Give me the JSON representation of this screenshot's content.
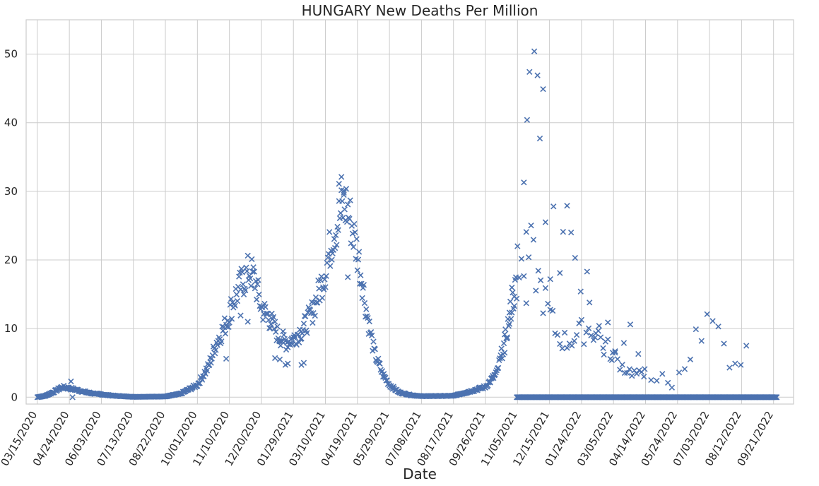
{
  "chart_data": {
    "type": "scatter",
    "title": "HUNGARY   New Deaths Per Million",
    "xlabel": "Date",
    "ylabel": "",
    "marker": "x",
    "color": "#4c72b0",
    "grid": true,
    "xlim_dates": [
      "2020-03-01",
      "2022-10-16"
    ],
    "ylim": [
      -1,
      55
    ],
    "y_ticks": [
      0,
      10,
      20,
      30,
      40,
      50
    ],
    "x_ticks": [
      "03/15/2020",
      "04/24/2020",
      "06/03/2020",
      "07/13/2020",
      "08/22/2020",
      "10/01/2020",
      "11/10/2020",
      "12/20/2020",
      "01/29/2021",
      "03/10/2021",
      "04/19/2021",
      "05/29/2021",
      "07/08/2021",
      "08/17/2021",
      "09/26/2021",
      "11/05/2021",
      "12/15/2021",
      "01/24/2022",
      "03/05/2022",
      "04/14/2022",
      "05/24/2022",
      "07/03/2022",
      "08/12/2022",
      "09/21/2022"
    ],
    "series": [
      {
        "anchors": [
          [
            "2020-03-15",
            0
          ],
          [
            "2020-03-25",
            0.2
          ],
          [
            "2020-04-05",
            0.8
          ],
          [
            "2020-04-15",
            1.5
          ],
          [
            "2020-04-24",
            1.3
          ],
          [
            "2020-05-05",
            1.0
          ],
          [
            "2020-05-20",
            0.6
          ],
          [
            "2020-06-03",
            0.4
          ],
          [
            "2020-06-20",
            0.2
          ],
          [
            "2020-07-13",
            0.05
          ],
          [
            "2020-08-22",
            0.1
          ],
          [
            "2020-09-10",
            0.5
          ],
          [
            "2020-10-01",
            1.8
          ],
          [
            "2020-10-15",
            4.5
          ],
          [
            "2020-10-25",
            8.0
          ],
          [
            "2020-11-05",
            10.5
          ],
          [
            "2020-11-15",
            14.0
          ],
          [
            "2020-11-25",
            16.5
          ],
          [
            "2020-12-05",
            18.5
          ],
          [
            "2020-12-12",
            17.0
          ],
          [
            "2020-12-20",
            13.0
          ],
          [
            "2020-12-30",
            11.5
          ],
          [
            "2021-01-10",
            9.0
          ],
          [
            "2021-01-20",
            8.0
          ],
          [
            "2021-01-29",
            8.5
          ],
          [
            "2021-02-10",
            10.0
          ],
          [
            "2021-02-20",
            12.0
          ],
          [
            "2021-03-01",
            15.0
          ],
          [
            "2021-03-10",
            18.5
          ],
          [
            "2021-03-20",
            24.0
          ],
          [
            "2021-03-30",
            27.0
          ],
          [
            "2021-04-05",
            28.0
          ],
          [
            "2021-04-12",
            25.0
          ],
          [
            "2021-04-19",
            21.0
          ],
          [
            "2021-04-25",
            17.0
          ],
          [
            "2021-05-01",
            12.0
          ],
          [
            "2021-05-10",
            6.5
          ],
          [
            "2021-05-20",
            3.5
          ],
          [
            "2021-05-29",
            1.8
          ],
          [
            "2021-06-10",
            0.7
          ],
          [
            "2021-06-25",
            0.3
          ],
          [
            "2021-07-08",
            0.15
          ],
          [
            "2021-08-17",
            0.2
          ],
          [
            "2021-09-05",
            0.8
          ],
          [
            "2021-09-26",
            1.5
          ],
          [
            "2021-10-10",
            3.5
          ],
          [
            "2021-10-20",
            8.0
          ],
          [
            "2021-10-28",
            13.0
          ],
          [
            "2021-11-05",
            17.0
          ],
          [
            "2021-11-15",
            20.0
          ],
          [
            "2021-11-22",
            21.0
          ],
          [
            "2021-12-01",
            17.0
          ],
          [
            "2021-12-15",
            12.0
          ],
          [
            "2021-12-25",
            9.0
          ],
          [
            "2022-01-05",
            8.0
          ],
          [
            "2022-01-24",
            9.5
          ],
          [
            "2022-02-05",
            10.0
          ],
          [
            "2022-02-15",
            9.0
          ],
          [
            "2022-03-05",
            6.0
          ],
          [
            "2022-03-20",
            4.0
          ],
          [
            "2022-04-14",
            3.0
          ],
          [
            "2022-05-10",
            0
          ],
          [
            "2022-10-16",
            0
          ]
        ],
        "spikes": [
          [
            "2020-04-26",
            2.3
          ],
          [
            "2020-04-28",
            0
          ],
          [
            "2020-11-06",
            5.6
          ],
          [
            "2020-11-24",
            11.9
          ],
          [
            "2020-12-03",
            11.0
          ],
          [
            "2021-01-06",
            5.7
          ],
          [
            "2021-01-12",
            5.5
          ],
          [
            "2021-01-19",
            4.7
          ],
          [
            "2021-01-22",
            4.9
          ],
          [
            "2021-02-08",
            4.7
          ],
          [
            "2021-02-11",
            5.0
          ],
          [
            "2021-03-27",
            31.1
          ],
          [
            "2021-03-30",
            32.1
          ],
          [
            "2021-04-02",
            29.8
          ],
          [
            "2021-04-02",
            30.1
          ],
          [
            "2021-04-07",
            17.5
          ],
          [
            "2021-11-05",
            22.0
          ],
          [
            "2021-11-13",
            31.3
          ],
          [
            "2021-11-16",
            13.7
          ],
          [
            "2021-11-17",
            40.4
          ],
          [
            "2021-11-20",
            47.4
          ],
          [
            "2021-11-26",
            50.4
          ],
          [
            "2021-11-30",
            46.9
          ],
          [
            "2021-12-03",
            37.7
          ],
          [
            "2021-12-07",
            44.9
          ],
          [
            "2021-12-10",
            25.5
          ],
          [
            "2021-12-16",
            17.2
          ],
          [
            "2021-12-20",
            27.8
          ],
          [
            "2021-12-28",
            18.1
          ],
          [
            "2022-01-01",
            24.1
          ],
          [
            "2022-01-06",
            27.9
          ],
          [
            "2022-01-11",
            24.0
          ],
          [
            "2022-01-16",
            20.3
          ],
          [
            "2022-01-23",
            15.4
          ],
          [
            "2022-01-31",
            18.3
          ],
          [
            "2022-02-03",
            13.8
          ],
          [
            "2022-02-10",
            8.7
          ],
          [
            "2022-02-15",
            10.4
          ],
          [
            "2022-02-21",
            6.2
          ],
          [
            "2022-02-26",
            10.9
          ],
          [
            "2022-03-03",
            5.4
          ],
          [
            "2022-03-07",
            6.7
          ],
          [
            "2022-03-18",
            7.9
          ],
          [
            "2022-03-26",
            10.6
          ],
          [
            "2022-04-05",
            6.3
          ],
          [
            "2022-04-13",
            4.1
          ],
          [
            "2022-04-21",
            2.5
          ],
          [
            "2022-04-28",
            2.4
          ],
          [
            "2022-05-05",
            3.4
          ],
          [
            "2022-05-12",
            2.1
          ],
          [
            "2022-05-17",
            1.4
          ],
          [
            "2022-05-26",
            3.6
          ],
          [
            "2022-06-02",
            4.1
          ],
          [
            "2022-06-09",
            5.5
          ],
          [
            "2022-06-16",
            9.9
          ],
          [
            "2022-06-23",
            8.2
          ],
          [
            "2022-06-30",
            12.1
          ],
          [
            "2022-07-07",
            11.1
          ],
          [
            "2022-07-14",
            10.3
          ],
          [
            "2022-07-21",
            7.8
          ],
          [
            "2022-07-28",
            4.3
          ],
          [
            "2022-08-04",
            4.9
          ],
          [
            "2022-08-11",
            4.7
          ],
          [
            "2022-08-18",
            7.5
          ]
        ]
      }
    ]
  }
}
